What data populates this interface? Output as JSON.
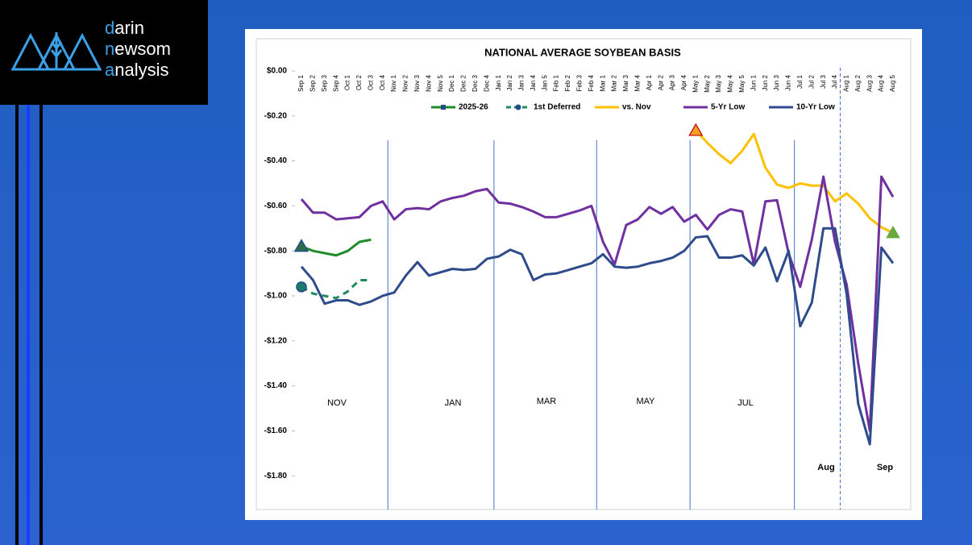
{
  "logo": {
    "words": [
      "darin",
      "newsom",
      "analysis"
    ]
  },
  "chart_data": {
    "type": "line",
    "title": "NATIONAL AVERAGE SOYBEAN BASIS",
    "categories": [
      "Sep 1",
      "Sep 2",
      "Sep 3",
      "Sep 4",
      "Oct 1",
      "Oct 2",
      "Oct 3",
      "Oct 4",
      "Nov 1",
      "Nov 2",
      "Nov 3",
      "Nov 4",
      "Nov 5",
      "Dec 1",
      "Dec 2",
      "Dec 3",
      "Dec 4",
      "Jan 1",
      "Jan 2",
      "Jan 3",
      "Jan 4",
      "Jan 5",
      "Feb 1",
      "Feb 2",
      "Feb 3",
      "Feb 4",
      "Mar 1",
      "Mar 2",
      "Mar 3",
      "Mar 4",
      "Apr 1",
      "Apr 2",
      "Apr 3",
      "Apr 4",
      "May 1",
      "May 2",
      "May 3",
      "May 4",
      "May 5",
      "Jun 1",
      "Jun 2",
      "Jun 3",
      "Jun 4",
      "Jul 1",
      "Jul 2",
      "Jul 3",
      "Jul 4",
      "Aug 1",
      "Aug 2",
      "Aug 3",
      "Aug 4",
      "Aug 5"
    ],
    "series": [
      {
        "name": "2025-26",
        "color": "#1e8c2a",
        "dashed": false,
        "values": [
          -0.78,
          -0.8,
          -0.81,
          -0.82,
          -0.8,
          -0.76,
          -0.75,
          null,
          null,
          null,
          null,
          null,
          null,
          null,
          null,
          null,
          null,
          null,
          null,
          null,
          null,
          null,
          null,
          null,
          null,
          null,
          null,
          null,
          null,
          null,
          null,
          null,
          null,
          null,
          null,
          null,
          null,
          null,
          null,
          null,
          null,
          null,
          null,
          null,
          null,
          null,
          null,
          null,
          null,
          null,
          null,
          null
        ]
      },
      {
        "name": "1st Deferred",
        "color": "#1e8c5a",
        "dashed": true,
        "values": [
          -0.96,
          -0.99,
          -1.0,
          -1.01,
          -0.98,
          -0.93,
          -0.93,
          null,
          null,
          null,
          null,
          null,
          null,
          null,
          null,
          null,
          null,
          null,
          null,
          null,
          null,
          null,
          null,
          null,
          null,
          null,
          null,
          null,
          null,
          null,
          null,
          null,
          null,
          null,
          null,
          null,
          null,
          null,
          null,
          null,
          null,
          null,
          null,
          null,
          null,
          null,
          null,
          null,
          null,
          null,
          null,
          null
        ]
      },
      {
        "name": "vs. Nov",
        "color": "#ffc000",
        "dashed": false,
        "values": [
          null,
          null,
          null,
          null,
          null,
          null,
          null,
          null,
          null,
          null,
          null,
          null,
          null,
          null,
          null,
          null,
          null,
          null,
          null,
          null,
          null,
          null,
          null,
          null,
          null,
          null,
          null,
          null,
          null,
          null,
          null,
          null,
          null,
          null,
          -0.265,
          -0.32,
          -0.37,
          -0.41,
          -0.355,
          -0.28,
          -0.43,
          -0.505,
          -0.52,
          -0.5,
          -0.51,
          -0.51,
          -0.58,
          -0.545,
          -0.59,
          -0.655,
          -0.695,
          -0.72
        ]
      },
      {
        "name": "5-Yr Low",
        "color": "#7030a0",
        "dashed": false,
        "values": [
          -0.57,
          -0.63,
          -0.63,
          -0.66,
          -0.655,
          -0.65,
          -0.6,
          -0.58,
          -0.66,
          -0.615,
          -0.61,
          -0.615,
          -0.58,
          -0.565,
          -0.555,
          -0.535,
          -0.525,
          -0.585,
          -0.59,
          -0.605,
          -0.625,
          -0.65,
          -0.65,
          -0.635,
          -0.62,
          -0.6,
          -0.76,
          -0.86,
          -0.685,
          -0.66,
          -0.605,
          -0.635,
          -0.605,
          -0.67,
          -0.64,
          -0.705,
          -0.64,
          -0.615,
          -0.625,
          -0.86,
          -0.58,
          -0.575,
          -0.81,
          -0.96,
          -0.75,
          -0.47,
          -0.76,
          -0.95,
          -1.3,
          -1.6,
          -0.47,
          -0.56
        ]
      },
      {
        "name": "10-Yr Low",
        "color": "#2f4b8c",
        "dashed": false,
        "values": [
          -0.87,
          -0.93,
          -1.035,
          -1.02,
          -1.02,
          -1.04,
          -1.025,
          -1.0,
          -0.985,
          -0.91,
          -0.85,
          -0.91,
          -0.895,
          -0.88,
          -0.885,
          -0.88,
          -0.835,
          -0.825,
          -0.795,
          -0.815,
          -0.93,
          -0.905,
          -0.9,
          -0.885,
          -0.87,
          -0.855,
          -0.815,
          -0.87,
          -0.875,
          -0.87,
          -0.855,
          -0.845,
          -0.83,
          -0.8,
          -0.74,
          -0.735,
          -0.83,
          -0.83,
          -0.82,
          -0.865,
          -0.785,
          -0.935,
          -0.8,
          -1.135,
          -1.03,
          -0.7,
          -0.7,
          -0.99,
          -1.48,
          -1.66,
          -0.785,
          -0.855
        ]
      }
    ],
    "ylim": [
      -1.95,
      0
    ],
    "yticks": [
      {
        "value": 0,
        "label": "$0.00"
      },
      {
        "value": -0.2,
        "label": "-$0.20"
      },
      {
        "value": -0.4,
        "label": "-$0.40"
      },
      {
        "value": -0.6,
        "label": "-$0.60"
      },
      {
        "value": -0.8,
        "label": "-$0.80"
      },
      {
        "value": -1.0,
        "label": "-$1.00"
      },
      {
        "value": -1.2,
        "label": "-$1.20"
      },
      {
        "value": -1.4,
        "label": "-$1.40"
      },
      {
        "value": -1.6,
        "label": "-$1.60"
      },
      {
        "value": -1.8,
        "label": "-$1.80"
      }
    ],
    "grid": false,
    "legend": "top",
    "annotations": [
      "NOV",
      "JAN",
      "MAR",
      "MAY",
      "JUL",
      "Aug",
      "Sep"
    ]
  }
}
